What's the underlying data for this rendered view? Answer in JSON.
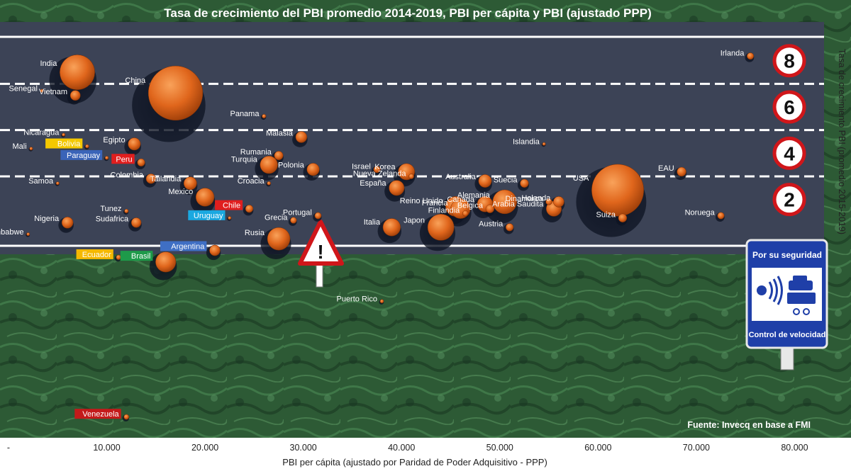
{
  "chart_data": {
    "type": "scatter",
    "title": "Tasa de crecimiento del PBI promedio 2014-2019, PBI per cápita y PBI (ajustado PPP)",
    "xlabel": "PBI per cápita (ajustado por Paridad de Poder Adquisitivo - PPP)",
    "ylabel": "Tasa de crecimiento PBI (promedio 2015-2019)",
    "source": "Fuente: Invecq en base a FMI",
    "xlim": [
      0,
      83000
    ],
    "ylim": [
      -8.3,
      9.4
    ],
    "x_ticks": [
      {
        "value": 0,
        "label": "-"
      },
      {
        "value": 10000,
        "label": "10.000"
      },
      {
        "value": 20000,
        "label": "20.000"
      },
      {
        "value": 30000,
        "label": "30.000"
      },
      {
        "value": 40000,
        "label": "40.000"
      },
      {
        "value": 50000,
        "label": "50.000"
      },
      {
        "value": 60000,
        "label": "60.000"
      },
      {
        "value": 70000,
        "label": "70.000"
      },
      {
        "value": 80000,
        "label": "80.000"
      }
    ],
    "y_signs": [
      {
        "value": 8,
        "label": "8"
      },
      {
        "value": 6,
        "label": "6"
      },
      {
        "value": 4,
        "label": "4"
      },
      {
        "value": 2,
        "label": "2"
      }
    ],
    "road": {
      "top": 9.0,
      "bottom": 0.0,
      "dashed_lines": [
        7.0,
        5.0,
        3.0
      ]
    },
    "sign": {
      "top_text": "Por su seguridad",
      "bottom_text": "Control de velocidad",
      "warning": "!"
    },
    "points": [
      {
        "name": "Irlanda",
        "x": 75500,
        "y": 8.2,
        "gdp": 0.35
      },
      {
        "name": "India",
        "x": 7000,
        "y": 7.5,
        "gdp": 9.5
      },
      {
        "name": "Senegal",
        "x": 3400,
        "y": 6.7,
        "gdp": 0.05
      },
      {
        "name": "Vietnam",
        "x": 6800,
        "y": 6.5,
        "gdp": 0.8
      },
      {
        "name": "China",
        "x": 17000,
        "y": 6.6,
        "gdp": 23.0
      },
      {
        "name": "Panama",
        "x": 26000,
        "y": 5.6,
        "gdp": 0.12
      },
      {
        "name": "Nicaragua",
        "x": 5600,
        "y": 4.8,
        "gdp": 0.03
      },
      {
        "name": "Egipto",
        "x": 12800,
        "y": 4.4,
        "gdp": 1.2
      },
      {
        "name": "Malasia",
        "x": 29800,
        "y": 4.7,
        "gdp": 1.0
      },
      {
        "name": "Islandia",
        "x": 54500,
        "y": 4.4,
        "gdp": 0.02
      },
      {
        "name": "Bolivia",
        "x": 8000,
        "y": 4.3,
        "gdp": 0.1,
        "tag": "#f5c800"
      },
      {
        "name": "Peru",
        "x": 13500,
        "y": 3.6,
        "gdp": 0.45,
        "tag": "#e01e1e"
      },
      {
        "name": "Mali",
        "x": 2300,
        "y": 4.2,
        "gdp": 0.04
      },
      {
        "name": "Paraguay",
        "x": 10000,
        "y": 3.8,
        "gdp": 0.09,
        "tag": "#3a64b8"
      },
      {
        "name": "Rumania",
        "x": 27500,
        "y": 3.9,
        "gdp": 0.6
      },
      {
        "name": "Turquia",
        "x": 26500,
        "y": 3.5,
        "gdp": 2.4
      },
      {
        "name": "Polonia",
        "x": 31000,
        "y": 3.3,
        "gdp": 1.2
      },
      {
        "name": "Nueva Zelanda",
        "x": 41000,
        "y": 3.0,
        "gdp": 0.2
      },
      {
        "name": "Israel",
        "x": 37500,
        "y": 3.3,
        "gdp": 0.35
      },
      {
        "name": "Korea",
        "x": 40500,
        "y": 3.2,
        "gdp": 2.1
      },
      {
        "name": "Australia",
        "x": 48500,
        "y": 2.8,
        "gdp": 1.3
      },
      {
        "name": "EAU",
        "x": 68500,
        "y": 3.2,
        "gdp": 0.65
      },
      {
        "name": "Samoa",
        "x": 5000,
        "y": 2.7,
        "gdp": 0.01
      },
      {
        "name": "Colombia",
        "x": 14500,
        "y": 2.9,
        "gdp": 0.75
      },
      {
        "name": "Tailandia",
        "x": 18500,
        "y": 2.7,
        "gdp": 1.3
      },
      {
        "name": "Croacia",
        "x": 26500,
        "y": 2.7,
        "gdp": 0.1
      },
      {
        "name": "Chile",
        "x": 24500,
        "y": 1.6,
        "gdp": 0.45,
        "tag": "#e01e1e"
      },
      {
        "name": "España",
        "x": 39500,
        "y": 2.5,
        "gdp": 1.8
      },
      {
        "name": "Suecia",
        "x": 52500,
        "y": 2.7,
        "gdp": 0.55
      },
      {
        "name": "USA",
        "x": 62000,
        "y": 2.4,
        "gdp": 21.0
      },
      {
        "name": "Mexico",
        "x": 20000,
        "y": 2.1,
        "gdp": 2.6
      },
      {
        "name": "Uruguay",
        "x": 22500,
        "y": 1.2,
        "gdp": 0.08,
        "tag": "#1aa8e0"
      },
      {
        "name": "Alemania",
        "x": 50500,
        "y": 1.9,
        "gdp": 4.5
      },
      {
        "name": "Arabia Saudita",
        "x": 55500,
        "y": 1.6,
        "gdp": 1.8
      },
      {
        "name": "Reino Unido",
        "x": 45500,
        "y": 1.7,
        "gdp": 3.1
      },
      {
        "name": "Francia",
        "x": 46000,
        "y": 1.6,
        "gdp": 3.0
      },
      {
        "name": "Belgica",
        "x": 49000,
        "y": 1.6,
        "gdp": 0.55
      },
      {
        "name": "Finlandia",
        "x": 46500,
        "y": 1.4,
        "gdp": 0.25
      },
      {
        "name": "Canada",
        "x": 48500,
        "y": 1.8,
        "gdp": 1.9
      },
      {
        "name": "Dinamarca",
        "x": 55000,
        "y": 1.9,
        "gdp": 0.3
      },
      {
        "name": "Holanda",
        "x": 56000,
        "y": 1.9,
        "gdp": 0.9
      },
      {
        "name": "Noruega",
        "x": 72500,
        "y": 1.3,
        "gdp": 0.35
      },
      {
        "name": "Tunez",
        "x": 12000,
        "y": 1.5,
        "gdp": 0.12
      },
      {
        "name": "Nigeria",
        "x": 6000,
        "y": 1.0,
        "gdp": 1.0
      },
      {
        "name": "Suiza",
        "x": 62500,
        "y": 1.2,
        "gdp": 0.55
      },
      {
        "name": "Portugal",
        "x": 31500,
        "y": 1.3,
        "gdp": 0.33
      },
      {
        "name": "Grecia",
        "x": 29000,
        "y": 1.1,
        "gdp": 0.3
      },
      {
        "name": "Italia",
        "x": 39000,
        "y": 0.8,
        "gdp": 2.4
      },
      {
        "name": "Japon",
        "x": 44000,
        "y": 0.8,
        "gdp": 5.4
      },
      {
        "name": "Austria",
        "x": 51000,
        "y": 0.8,
        "gdp": 0.45
      },
      {
        "name": "Sudafrica",
        "x": 13000,
        "y": 1.0,
        "gdp": 0.75
      },
      {
        "name": "Zimbabwe",
        "x": 2000,
        "y": 0.5,
        "gdp": 0.03
      },
      {
        "name": "Rusia",
        "x": 27500,
        "y": 0.3,
        "gdp": 4.0
      },
      {
        "name": "Argentina",
        "x": 21000,
        "y": -0.2,
        "gdp": 0.9,
        "tag": "#3f6fc4"
      },
      {
        "name": "Ecuador",
        "x": 11200,
        "y": -0.5,
        "gdp": 0.18,
        "tag": "#f5b800"
      },
      {
        "name": "Brasil",
        "x": 16000,
        "y": -0.7,
        "gdp": 3.2,
        "tag": "#1e9a4a"
      },
      {
        "name": "Puerto Rico",
        "x": 38000,
        "y": -2.4,
        "gdp": 0.1
      },
      {
        "name": "Venezuela",
        "x": 12000,
        "y": -7.4,
        "gdp": 0.2,
        "tag": "#c41a1a"
      }
    ]
  }
}
